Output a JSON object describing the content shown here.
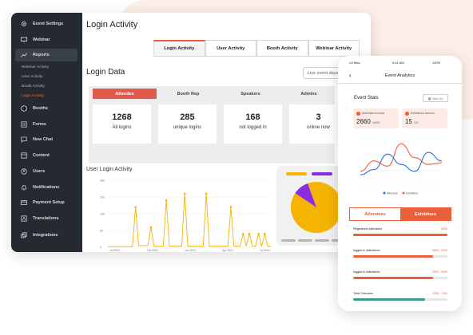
{
  "sidebar": {
    "items": [
      {
        "label": "Event Settings",
        "icon": "gear-icon"
      },
      {
        "label": "Webinar",
        "icon": "monitor-icon"
      },
      {
        "label": "Reports",
        "icon": "trend-icon"
      },
      {
        "label": "Booths",
        "icon": "cube-icon"
      },
      {
        "label": "Forms",
        "icon": "form-icon"
      },
      {
        "label": "New Chat",
        "icon": "chat-icon"
      },
      {
        "label": "Content",
        "icon": "content-icon"
      },
      {
        "label": "Users",
        "icon": "user-icon"
      },
      {
        "label": "Notifications",
        "icon": "bell-icon"
      },
      {
        "label": "Payment Setup",
        "icon": "card-icon"
      },
      {
        "label": "Translations",
        "icon": "translate-icon"
      },
      {
        "label": "Integrations",
        "icon": "integrations-icon"
      }
    ],
    "subitems": [
      "Webinar Activity",
      "User Activity",
      "Booth Activity",
      "Login Activity"
    ]
  },
  "main": {
    "title": "Login Activity",
    "tabs": [
      "Login Activity",
      "User Activity",
      "Booth Activity",
      "Webinar Activity"
    ],
    "section_title": "Login Data",
    "select_value": "Live event days",
    "stats_tabs": [
      "Attendee",
      "Booth Rep",
      "Speakers",
      "Admins"
    ],
    "cards": [
      {
        "value": "1268",
        "label": "All logins"
      },
      {
        "value": "285",
        "label": "unique logins"
      },
      {
        "value": "168",
        "label": "not logged in"
      },
      {
        "value": "3",
        "label": "online now"
      }
    ],
    "chart_title": "User Login Activity"
  },
  "chart_data": {
    "type": "line",
    "title": "User Login Activity",
    "yticks": [
      "200",
      "150",
      "100",
      "50",
      "0"
    ],
    "xticks": [
      "Jul 2021",
      "Oct 2021",
      "Jan 2021",
      "Apr 2021",
      "Jul 2021"
    ],
    "ylim": [
      0,
      200
    ],
    "series": [
      {
        "values": [
          2,
          2,
          2,
          2,
          2,
          2,
          2,
          2,
          2,
          120,
          5,
          5,
          5,
          5,
          60,
          3,
          3,
          3,
          3,
          140,
          3,
          3,
          3,
          3,
          3,
          160,
          3,
          3,
          3,
          3,
          3,
          3,
          160,
          3,
          3,
          3,
          3,
          3,
          3,
          3,
          120,
          3,
          3,
          3,
          40,
          3,
          40,
          3,
          3,
          40,
          3,
          40,
          3,
          3
        ]
      }
    ],
    "color": "#f5b400"
  },
  "pie": {
    "segments": [
      {
        "value": 90,
        "color": "#f5b400"
      },
      {
        "value": 10,
        "color": "#8b2be2"
      }
    ],
    "legend_colors": [
      "#f5b400",
      "#8b2be2"
    ]
  },
  "phone": {
    "status_left": "••ll Idea",
    "time": "9:41 AM",
    "battery": "100%",
    "title": "Event Analytics",
    "event_stats": "Event Stats",
    "date": "Dec 01",
    "kpis": [
      {
        "label": "Attendee turnout",
        "value": "2660",
        "sub": "/4000"
      },
      {
        "label": "Exhibitors turnout",
        "value": "15",
        "sub": "/20"
      }
    ],
    "legend": [
      "Attendee",
      "Exhibitors"
    ],
    "tabs": [
      "Attendees",
      "Exhibitors"
    ],
    "bars": [
      {
        "label": "Registered Attendees",
        "value": "3600",
        "fraction": 1.0,
        "color": "#e9603b"
      },
      {
        "label": "logged in Attendees",
        "value": "2550 - 60%",
        "fraction": 0.85,
        "color": "#e9603b"
      },
      {
        "label": "logged in Attendees",
        "value": "2550 - 60%",
        "fraction": 0.85,
        "color": "#e9603b"
      },
      {
        "label": "Total Checkins",
        "value": "2250 - 75%",
        "fraction": 0.76,
        "color": "#3a9a8a"
      }
    ],
    "chart_data": {
      "type": "line",
      "series": [
        {
          "values": [
            40,
            70,
            55,
            120,
            80,
            60,
            65
          ],
          "color": "#e9603b"
        },
        {
          "values": [
            30,
            45,
            90,
            60,
            40,
            95,
            70
          ],
          "color": "#2a6fdb"
        }
      ]
    }
  }
}
